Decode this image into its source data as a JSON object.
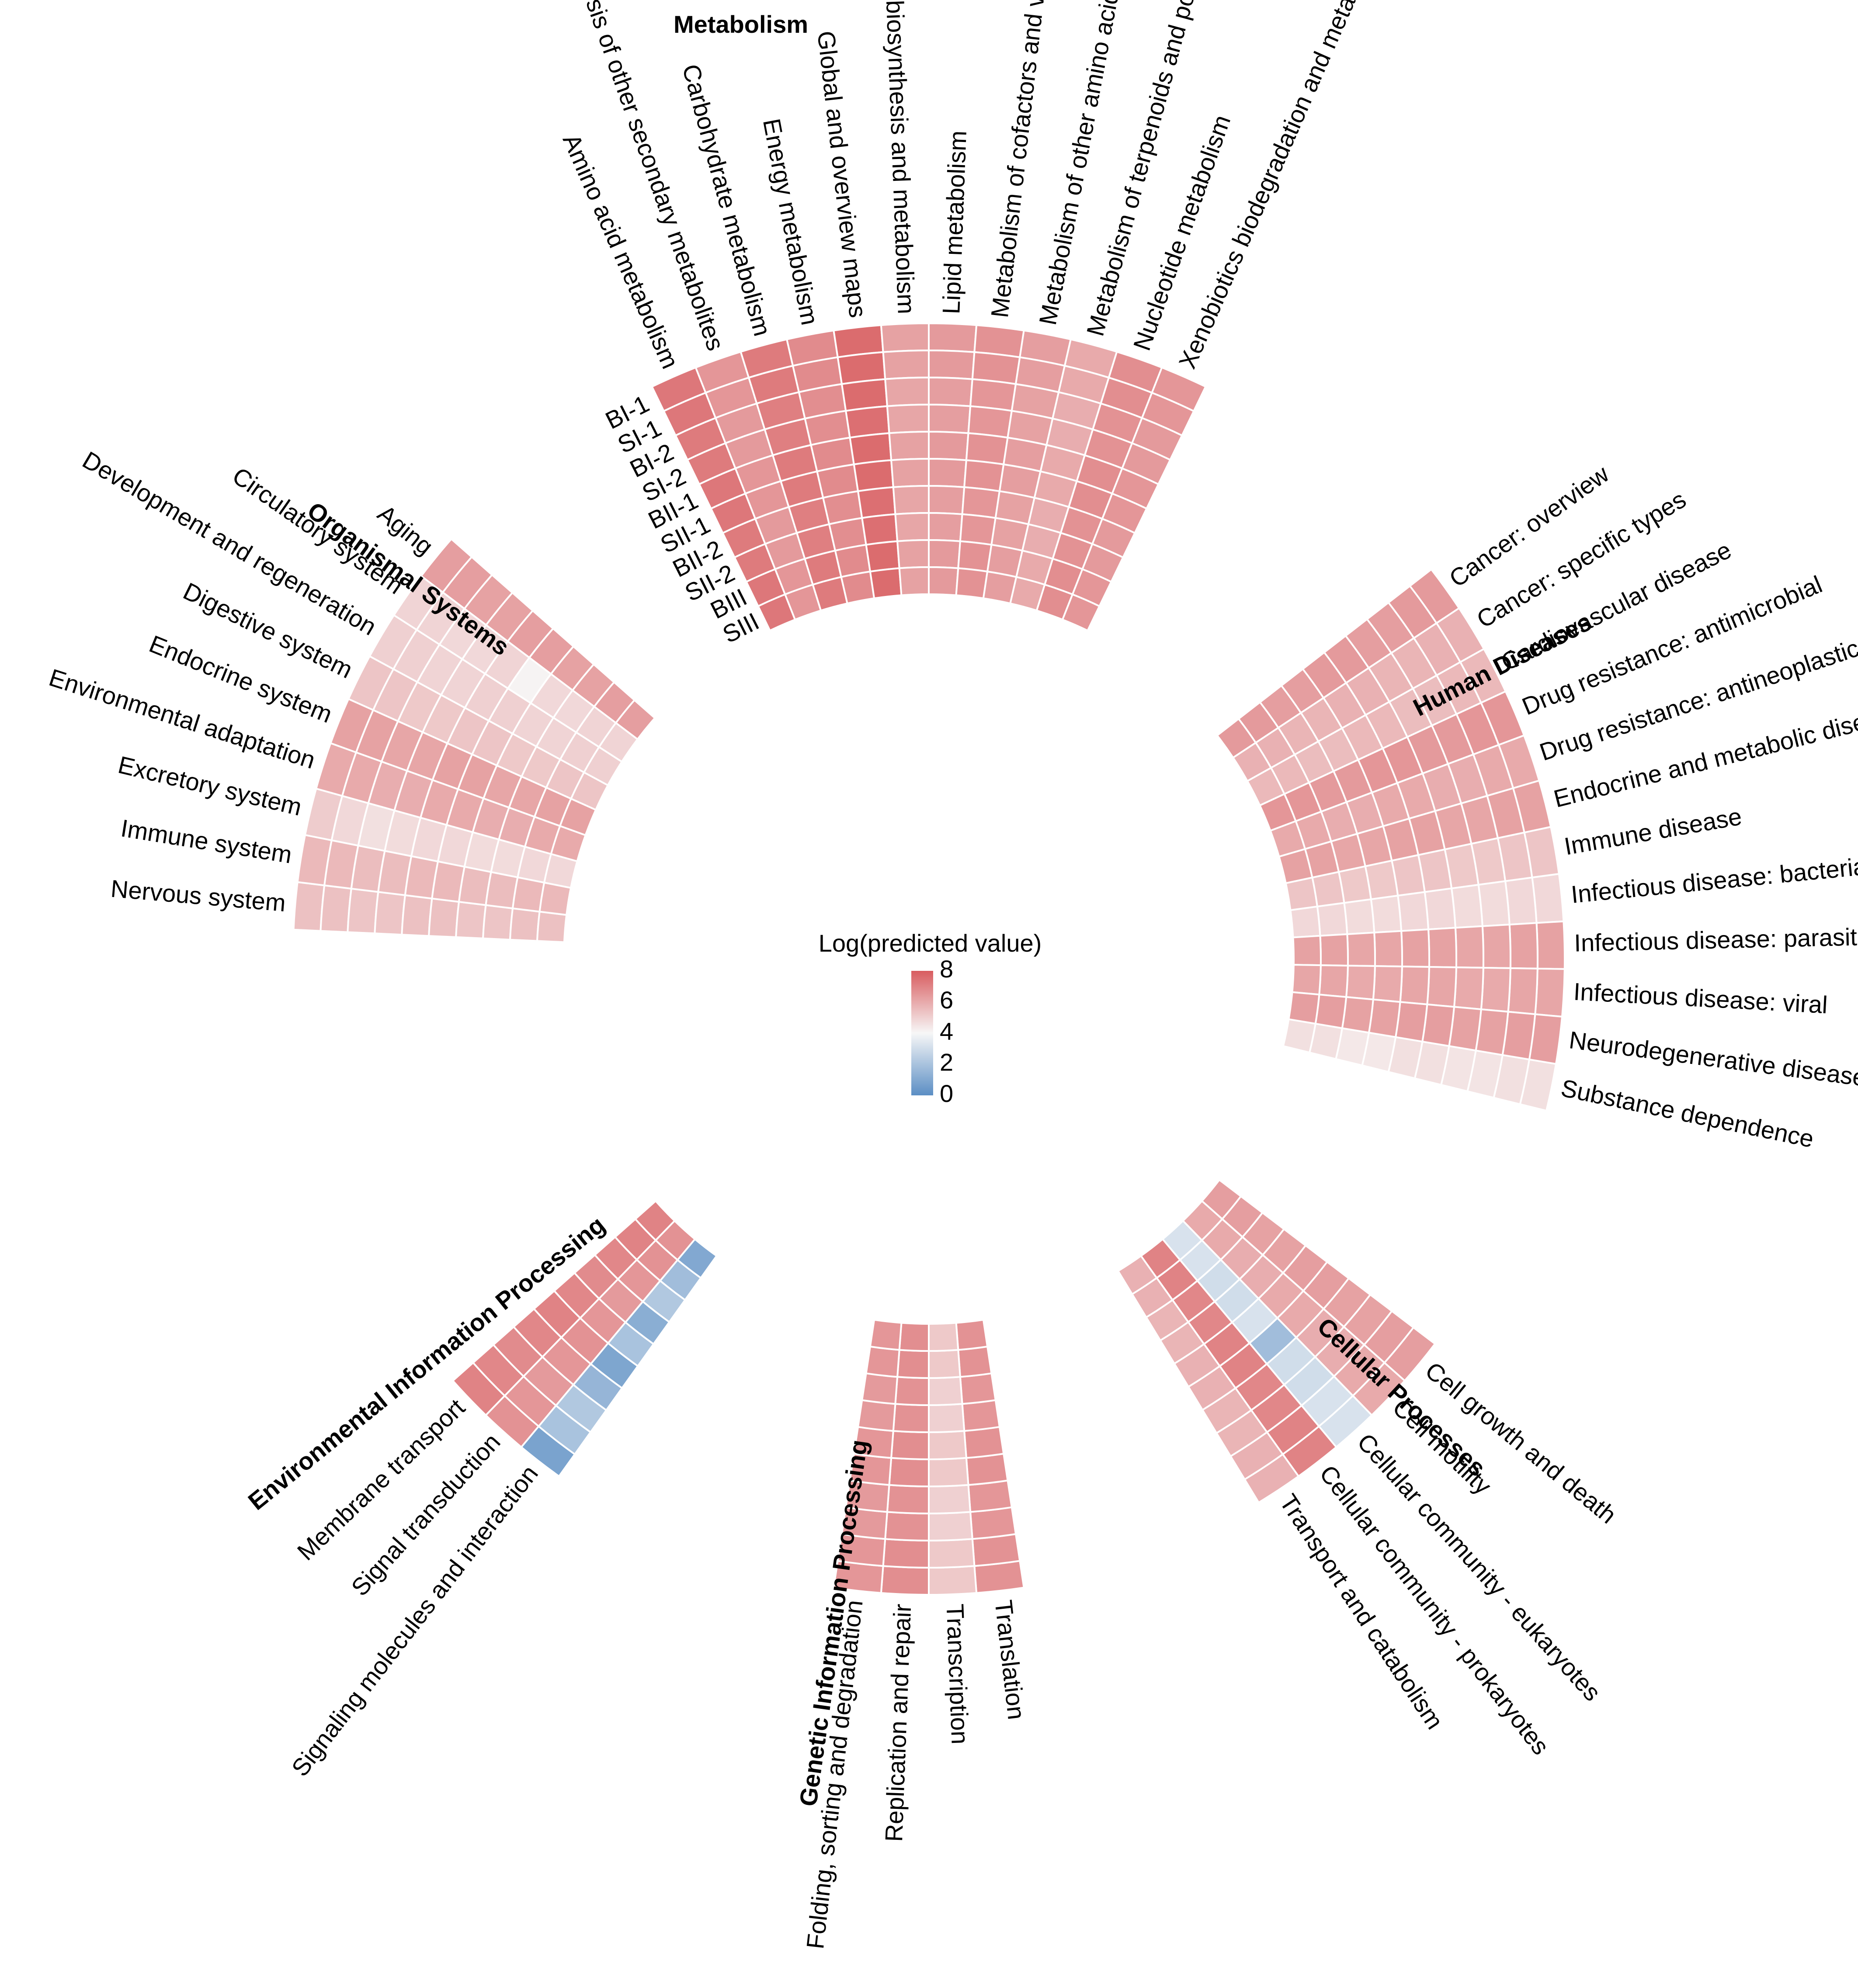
{
  "chart_data": {
    "type": "heatmap",
    "subtype": "circular",
    "legend": {
      "title": "Log(predicted value)",
      "ticks": [
        8,
        6,
        4,
        2,
        0
      ],
      "range": [
        0,
        8
      ],
      "placement": "center"
    },
    "color_scale": {
      "low": "#5b8ec4",
      "mid": "#f7f7f7",
      "high": "#d85c5f"
    },
    "samples": [
      "BI-1",
      "SI-1",
      "BI-2",
      "SI-2",
      "BII-1",
      "SII-1",
      "BII-2",
      "SII-2",
      "BIII",
      "SIII"
    ],
    "groups": [
      {
        "name": "Metabolism",
        "categories": [
          "Amino acid metabolism",
          "Biosynthesis of other secondary metabolites",
          "Carbohydrate metabolism",
          "Energy metabolism",
          "Global and overview maps",
          "Glycan biosynthesis and metabolism",
          "Lipid metabolism",
          "Metabolism of cofactors and vitamins",
          "Metabolism of other amino acids",
          "Metabolism of terpenoids and polyketides",
          "Nucleotide metabolism",
          "Xenobiotics biodegradation and metabolism"
        ],
        "values": [
          [
            7.3,
            6.5,
            7.2,
            6.8,
            7.6,
            6.2,
            6.4,
            6.6,
            6.3,
            6.0,
            6.7,
            6.5
          ],
          [
            7.3,
            6.5,
            7.2,
            6.8,
            7.6,
            6.2,
            6.4,
            6.6,
            6.3,
            6.0,
            6.7,
            6.5
          ],
          [
            7.2,
            6.4,
            7.1,
            6.7,
            7.6,
            6.1,
            6.3,
            6.5,
            6.2,
            5.9,
            6.6,
            6.4
          ],
          [
            7.2,
            6.4,
            7.1,
            6.7,
            7.5,
            6.1,
            6.3,
            6.5,
            6.2,
            5.9,
            6.6,
            6.4
          ],
          [
            7.3,
            6.5,
            7.2,
            6.8,
            7.6,
            6.2,
            6.4,
            6.6,
            6.3,
            6.0,
            6.7,
            6.5
          ],
          [
            7.3,
            6.5,
            7.2,
            6.8,
            7.6,
            6.2,
            6.4,
            6.6,
            6.3,
            6.0,
            6.7,
            6.5
          ],
          [
            7.2,
            6.4,
            7.1,
            6.7,
            7.5,
            6.1,
            6.3,
            6.5,
            6.2,
            5.9,
            6.6,
            6.4
          ],
          [
            7.2,
            6.4,
            7.1,
            6.7,
            7.5,
            6.1,
            6.3,
            6.5,
            6.2,
            5.9,
            6.6,
            6.4
          ],
          [
            7.3,
            6.5,
            7.2,
            6.8,
            7.6,
            6.2,
            6.4,
            6.6,
            6.3,
            6.0,
            6.7,
            6.5
          ],
          [
            7.3,
            6.5,
            7.2,
            6.8,
            7.6,
            6.2,
            6.4,
            6.6,
            6.3,
            6.0,
            6.7,
            6.5
          ]
        ]
      },
      {
        "name": "Human Diseases",
        "categories": [
          "Cancer: overview",
          "Cancer: specific types",
          "Cardiovascular disease",
          "Drug resistance: antimicrobial",
          "Drug resistance: antineoplastic",
          "Endocrine and metabolic disease",
          "Immune disease",
          "Infectious disease: bacterial",
          "Infectious disease: parasitic",
          "Infectious disease: viral",
          "Neurodegenerative disease",
          "Substance dependence"
        ],
        "values": [
          [
            6.4,
            5.8,
            5.6,
            6.5,
            6.0,
            6.2,
            5.3,
            4.8,
            6.2,
            6.1,
            6.3,
            4.6
          ],
          [
            6.4,
            5.8,
            5.6,
            6.5,
            6.0,
            6.2,
            5.3,
            4.8,
            6.2,
            6.1,
            6.3,
            4.6
          ],
          [
            6.3,
            5.7,
            5.5,
            6.4,
            5.9,
            6.1,
            5.2,
            4.7,
            6.1,
            6.0,
            6.2,
            4.5
          ],
          [
            6.3,
            5.7,
            5.5,
            6.4,
            5.9,
            6.1,
            5.2,
            4.7,
            6.1,
            6.0,
            6.2,
            4.5
          ],
          [
            6.4,
            5.8,
            5.6,
            6.5,
            6.0,
            6.2,
            5.3,
            4.8,
            6.2,
            6.1,
            6.3,
            4.6
          ],
          [
            6.4,
            5.8,
            5.6,
            6.5,
            6.0,
            6.2,
            5.3,
            4.8,
            6.2,
            6.1,
            6.3,
            4.6
          ],
          [
            6.3,
            5.7,
            5.5,
            6.4,
            5.9,
            6.1,
            5.2,
            4.7,
            6.1,
            6.0,
            6.2,
            4.4
          ],
          [
            6.3,
            5.7,
            5.5,
            6.4,
            5.9,
            6.1,
            5.2,
            4.7,
            6.1,
            6.0,
            6.2,
            4.4
          ],
          [
            6.4,
            5.8,
            5.6,
            6.5,
            6.0,
            6.2,
            5.3,
            4.8,
            6.2,
            6.1,
            6.3,
            4.6
          ],
          [
            6.4,
            5.8,
            5.6,
            6.5,
            6.0,
            6.2,
            5.3,
            4.8,
            6.2,
            6.1,
            6.3,
            4.6
          ]
        ]
      },
      {
        "name": "Cellular Processes",
        "categories": [
          "Cell growth and death",
          "Cell motility",
          "Cellular community - eukaryotes",
          "Cellular community - prokaryotes",
          "Transport and catabolism"
        ],
        "values": [
          [
            6.3,
            6.0,
            3.2,
            7.0,
            5.8
          ],
          [
            6.3,
            6.0,
            3.2,
            7.0,
            5.8
          ],
          [
            6.2,
            5.9,
            3.0,
            6.9,
            5.7
          ],
          [
            6.2,
            5.9,
            3.0,
            6.9,
            5.7
          ],
          [
            6.3,
            6.0,
            1.8,
            7.0,
            5.8
          ],
          [
            6.3,
            6.0,
            3.2,
            7.0,
            5.8
          ],
          [
            6.2,
            5.9,
            3.0,
            6.9,
            5.7
          ],
          [
            6.2,
            5.9,
            3.0,
            6.9,
            5.7
          ],
          [
            6.3,
            6.0,
            3.2,
            7.0,
            5.8
          ],
          [
            6.3,
            6.0,
            3.2,
            7.0,
            5.8
          ]
        ]
      },
      {
        "name": "Genetic Information Processing",
        "categories": [
          "Translation",
          "Transcription",
          "Replication and repair",
          "Folding, sorting and degradation"
        ],
        "values": [
          [
            6.6,
            5.2,
            6.7,
            6.5
          ],
          [
            6.6,
            5.2,
            6.7,
            6.5
          ],
          [
            6.5,
            5.0,
            6.6,
            6.4
          ],
          [
            6.5,
            5.0,
            6.6,
            6.4
          ],
          [
            6.6,
            5.2,
            6.7,
            6.5
          ],
          [
            6.6,
            5.2,
            6.7,
            6.5
          ],
          [
            6.5,
            5.0,
            6.6,
            6.4
          ],
          [
            6.5,
            5.0,
            6.6,
            6.4
          ],
          [
            6.6,
            5.2,
            6.7,
            6.5
          ],
          [
            6.6,
            5.2,
            6.7,
            6.5
          ]
        ]
      },
      {
        "name": "Environmental Information Processing",
        "categories": [
          "Signaling molecules and interaction",
          "Signal transduction",
          "Membrane transport"
        ],
        "values": [
          [
            0.8,
            6.6,
            7.0
          ],
          [
            2.0,
            6.5,
            6.9
          ],
          [
            2.2,
            6.4,
            6.8
          ],
          [
            1.5,
            6.5,
            6.9
          ],
          [
            0.9,
            6.6,
            7.0
          ],
          [
            2.0,
            6.5,
            6.9
          ],
          [
            1.2,
            6.4,
            6.8
          ],
          [
            2.2,
            6.5,
            6.9
          ],
          [
            1.8,
            6.6,
            7.0
          ],
          [
            1.0,
            6.6,
            7.0
          ]
        ]
      },
      {
        "name": "Organismal Systems",
        "categories": [
          "Nervous system",
          "Immune system",
          "Excretory system",
          "Environmental adaptation",
          "Endocrine system",
          "Digestive system",
          "Development and regeneration",
          "Circulatory system",
          "Aging"
        ],
        "values": [
          [
            5.4,
            5.6,
            5.1,
            6.0,
            6.2,
            5.3,
            5.0,
            4.9,
            6.3
          ],
          [
            5.4,
            5.6,
            4.8,
            6.0,
            6.2,
            5.3,
            5.0,
            4.9,
            6.3
          ],
          [
            5.3,
            5.5,
            4.6,
            5.9,
            6.1,
            5.2,
            4.9,
            4.8,
            6.2
          ],
          [
            5.3,
            5.5,
            4.7,
            5.9,
            6.1,
            5.2,
            4.9,
            4.8,
            6.2
          ],
          [
            5.4,
            5.6,
            4.8,
            6.0,
            6.2,
            5.3,
            5.0,
            4.9,
            6.3
          ],
          [
            5.4,
            5.6,
            4.8,
            6.0,
            6.2,
            5.3,
            5.0,
            4.1,
            6.3
          ],
          [
            5.3,
            5.5,
            4.7,
            5.9,
            6.1,
            5.2,
            4.9,
            4.8,
            6.2
          ],
          [
            5.3,
            5.5,
            4.7,
            5.9,
            6.1,
            5.2,
            4.9,
            4.8,
            6.2
          ],
          [
            5.4,
            5.6,
            4.8,
            6.0,
            6.2,
            5.3,
            5.0,
            4.9,
            6.3
          ],
          [
            5.4,
            5.6,
            4.8,
            6.0,
            6.2,
            5.3,
            5.0,
            4.9,
            6.3
          ]
        ]
      }
    ]
  }
}
